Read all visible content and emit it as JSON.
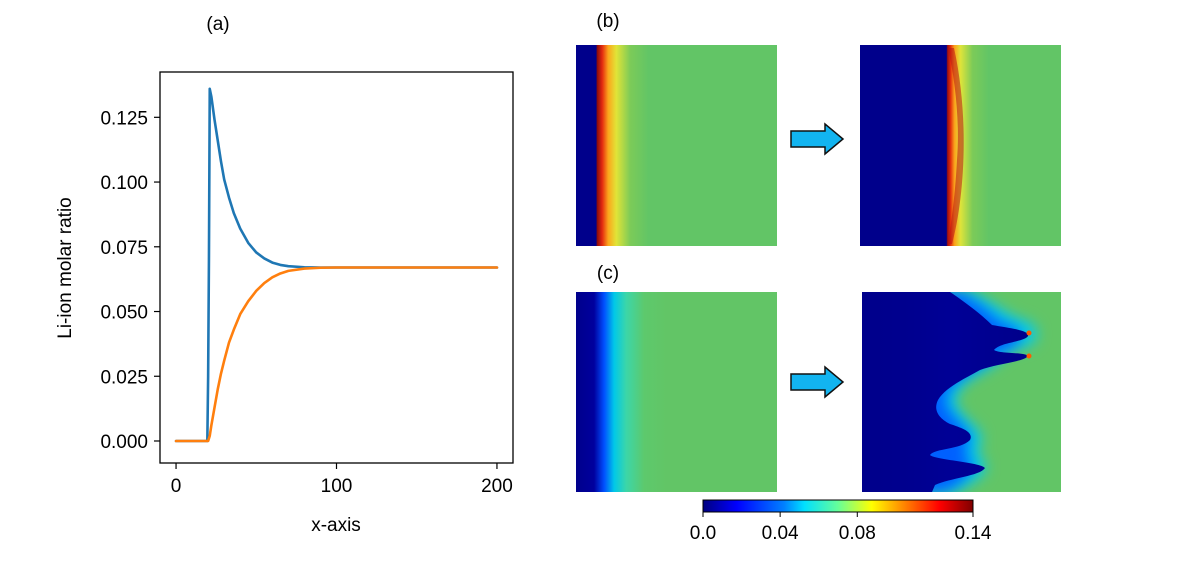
{
  "panels": {
    "a_label": "(a)",
    "b_label": "(b)",
    "c_label": "(c)"
  },
  "chart_data": [
    {
      "type": "line",
      "xlabel": "x-axis",
      "ylabel": "Li-ion molar ratio",
      "xlim": [
        -10,
        210
      ],
      "ylim": [
        -0.0085,
        0.1425
      ],
      "xticks": [
        0,
        100,
        200
      ],
      "yticks": [
        0.0,
        0.025,
        0.05,
        0.075,
        0.1,
        0.125
      ],
      "ytick_labels": [
        "0.000",
        "0.025",
        "0.050",
        "0.075",
        "0.100",
        "0.125"
      ],
      "grid": false,
      "series": [
        {
          "color": "#1f77b4",
          "x": [
            0,
            10,
            19.5,
            20,
            20.5,
            21,
            22,
            24,
            26,
            28,
            30,
            33,
            36,
            40,
            45,
            50,
            55,
            60,
            65,
            70,
            80,
            90,
            100,
            120,
            140,
            160,
            180,
            200
          ],
          "y": [
            0,
            0,
            0,
            0.025,
            0.07,
            0.136,
            0.133,
            0.124,
            0.116,
            0.108,
            0.101,
            0.094,
            0.088,
            0.082,
            0.0765,
            0.0728,
            0.0705,
            0.0689,
            0.068,
            0.0675,
            0.0671,
            0.067,
            0.067,
            0.067,
            0.067,
            0.067,
            0.067,
            0.067
          ]
        },
        {
          "color": "#ff7f0e",
          "x": [
            0,
            10,
            20,
            21,
            22,
            24,
            26,
            28,
            30,
            33,
            36,
            40,
            45,
            50,
            55,
            60,
            65,
            70,
            80,
            90,
            100,
            120,
            140,
            160,
            180,
            200
          ],
          "y": [
            0,
            0,
            0,
            0.002,
            0.006,
            0.013,
            0.02,
            0.026,
            0.031,
            0.038,
            0.043,
            0.049,
            0.054,
            0.058,
            0.061,
            0.0632,
            0.0647,
            0.0657,
            0.0666,
            0.0669,
            0.067,
            0.067,
            0.067,
            0.067,
            0.067,
            0.067
          ]
        }
      ]
    },
    {
      "type": "heatmap",
      "colorbar": {
        "range": [
          0.0,
          0.14
        ],
        "ticks": [
          0.0,
          0.04,
          0.08,
          0.14
        ],
        "tick_labels": [
          "0.0",
          "0.04",
          "0.08",
          "0.14"
        ],
        "colormap": "jet"
      }
    }
  ]
}
